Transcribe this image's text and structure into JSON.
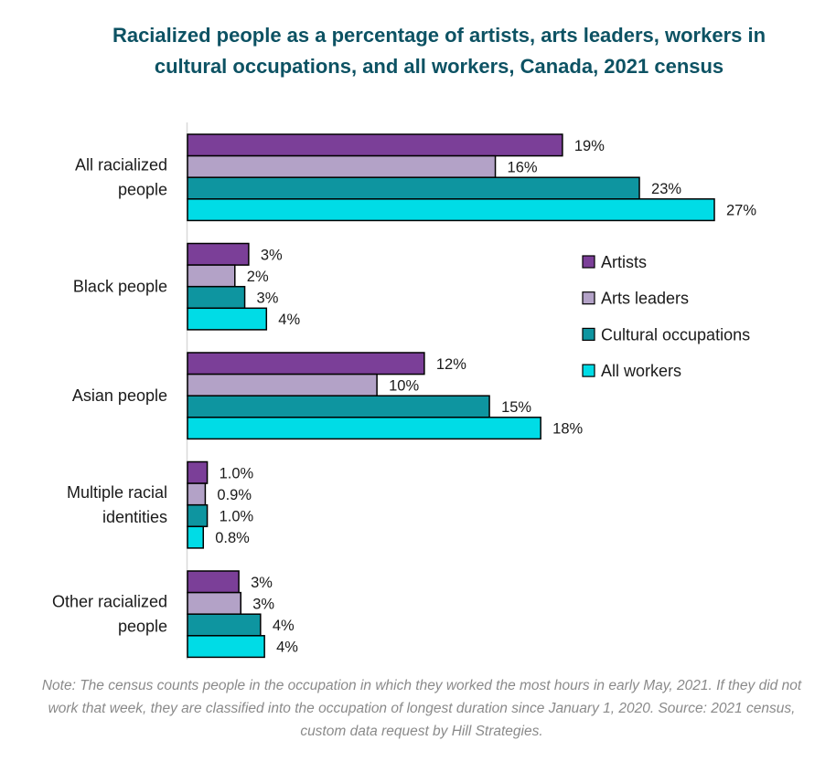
{
  "chart_data": {
    "type": "bar",
    "orientation": "horizontal",
    "title": "Racialized people as a percentage of artists, arts leaders, workers in cultural occupations, and all workers, Canada, 2021 census",
    "categories": [
      [
        "All racialized",
        "people"
      ],
      [
        "Black people"
      ],
      [
        "Asian people"
      ],
      [
        "Multiple racial",
        "identities"
      ],
      [
        "Other racialized",
        "people"
      ]
    ],
    "series": [
      {
        "name": "Artists",
        "color": "#7b3f98",
        "values": [
          19.0,
          3.1,
          12.0,
          1.0,
          2.6
        ],
        "labels": [
          "19%",
          "3%",
          "12%",
          "1.0%",
          "3%"
        ]
      },
      {
        "name": "Arts leaders",
        "color": "#b3a2c7",
        "values": [
          15.6,
          2.4,
          9.6,
          0.9,
          2.7
        ],
        "labels": [
          "16%",
          "2%",
          "10%",
          "0.9%",
          "3%"
        ]
      },
      {
        "name": "Cultural occupations",
        "color": "#0e95a0",
        "values": [
          22.9,
          2.9,
          15.3,
          1.0,
          3.7
        ],
        "labels": [
          "23%",
          "3%",
          "15%",
          "1.0%",
          "4%"
        ]
      },
      {
        "name": "All workers",
        "color": "#00dce6",
        "values": [
          26.7,
          4.0,
          17.9,
          0.8,
          3.9
        ],
        "labels": [
          "27%",
          "4%",
          "18%",
          "0.8%",
          "4%"
        ]
      }
    ],
    "xlim": [
      0,
      28
    ],
    "grid": false,
    "legend_position": "right"
  },
  "note": "Note: The census counts people in the occupation in which they worked the most hours in early May, 2021. If they did not work that week, they are classified into the occupation of longest duration since January 1, 2020. Source: 2021 census, custom data request by Hill Strategies."
}
